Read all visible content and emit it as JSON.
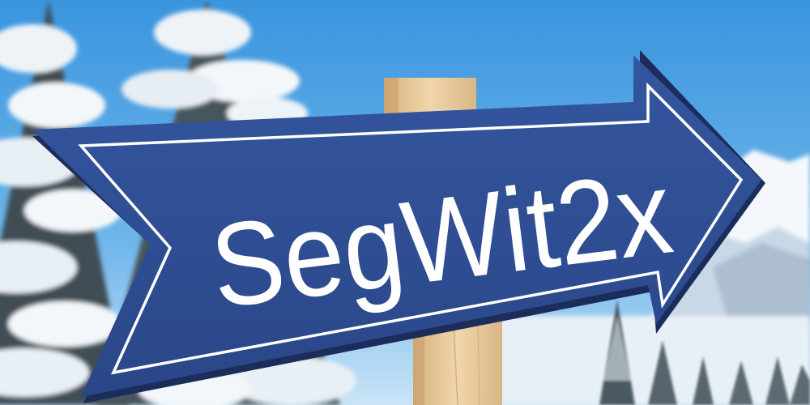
{
  "photo": {
    "sign_text": "SegWit2x",
    "colors": {
      "sky_top": "#3d9ae0",
      "sky_bottom": "#a9d4f2",
      "sign_blue": "#2f4e96",
      "sign_border": "#ffffff",
      "post_wood": "#e6c79a",
      "snow": "#f2f6fa",
      "tree_dark": "#3c4a52"
    },
    "icons": [
      "arrow-sign",
      "wooden-post",
      "snowy-pine-trees",
      "snowy-mountain"
    ]
  }
}
